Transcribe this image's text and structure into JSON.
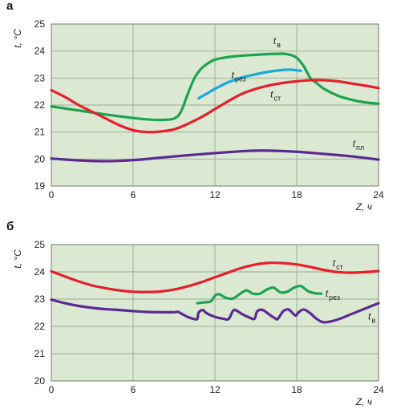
{
  "chart_data": [
    {
      "panel": "а",
      "type": "line",
      "xlabel": "Z, ч",
      "ylabel": "t, °C",
      "xlim": [
        0,
        24
      ],
      "ylim": [
        19,
        25
      ],
      "xticks": [
        "0",
        "6",
        "12",
        "18",
        "24"
      ],
      "yticks": [
        "19",
        "20",
        "21",
        "22",
        "23",
        "24",
        "25"
      ],
      "grid": true,
      "series": [
        {
          "label_main": "t",
          "label_sub": "в",
          "color": "#1ea250",
          "x": [
            0,
            2,
            4,
            6,
            7,
            8,
            9,
            9.5,
            10,
            10.5,
            11,
            11.5,
            12,
            13,
            14,
            15,
            16,
            17,
            17.5,
            18,
            18.5,
            19,
            19.5,
            20,
            21,
            22,
            23,
            24
          ],
          "y": [
            21.95,
            21.8,
            21.65,
            21.52,
            21.47,
            21.45,
            21.5,
            21.75,
            22.4,
            23.0,
            23.35,
            23.55,
            23.68,
            23.78,
            23.83,
            23.86,
            23.89,
            23.9,
            23.86,
            23.75,
            23.45,
            23.0,
            22.8,
            22.6,
            22.35,
            22.2,
            22.1,
            22.05
          ]
        },
        {
          "label_main": "t",
          "label_sub": "рез",
          "color": "#1aa8df",
          "x": [
            10.8,
            11.5,
            12,
            13,
            14,
            15,
            16,
            17,
            17.5,
            18,
            18.3
          ],
          "y": [
            22.25,
            22.45,
            22.6,
            22.85,
            23.02,
            23.14,
            23.24,
            23.3,
            23.31,
            23.29,
            23.27
          ]
        },
        {
          "label_main": "t",
          "label_sub": "ст",
          "color": "#e3202b",
          "x": [
            0,
            1,
            2,
            3,
            4,
            5,
            6,
            7,
            8,
            9,
            10,
            11,
            12,
            13,
            14,
            15,
            16,
            17,
            18,
            19,
            20,
            21,
            22,
            23,
            24
          ],
          "y": [
            22.55,
            22.3,
            22.0,
            21.75,
            21.5,
            21.25,
            21.07,
            21.0,
            21.02,
            21.1,
            21.3,
            21.55,
            21.85,
            22.15,
            22.42,
            22.6,
            22.73,
            22.82,
            22.88,
            22.92,
            22.92,
            22.88,
            22.8,
            22.72,
            22.63
          ]
        },
        {
          "label_main": "t",
          "label_sub": "пл",
          "color": "#5b2a91",
          "x": [
            0,
            2,
            4,
            6,
            8,
            10,
            12,
            14,
            15,
            16,
            18,
            20,
            22,
            24
          ],
          "y": [
            20.02,
            19.95,
            19.92,
            19.96,
            20.05,
            20.14,
            20.22,
            20.29,
            20.31,
            20.31,
            20.27,
            20.19,
            20.1,
            19.98
          ]
        }
      ]
    },
    {
      "panel": "б",
      "type": "line",
      "xlabel": "Z, ч",
      "ylabel": "t, °C",
      "xlim": [
        0,
        24
      ],
      "ylim": [
        20,
        25
      ],
      "xticks": [
        "0",
        "6",
        "12",
        "18",
        "24"
      ],
      "yticks": [
        "20",
        "21",
        "22",
        "23",
        "24",
        "25"
      ],
      "grid": true,
      "series": [
        {
          "label_main": "t",
          "label_sub": "ст",
          "color": "#e3202b",
          "x": [
            0,
            1,
            2,
            3,
            4,
            5,
            6,
            7,
            8,
            9,
            10,
            11,
            12,
            13,
            14,
            15,
            16,
            17,
            18,
            19,
            20,
            21,
            22,
            23,
            24
          ],
          "y": [
            24.02,
            23.83,
            23.65,
            23.5,
            23.4,
            23.32,
            23.27,
            23.26,
            23.28,
            23.35,
            23.47,
            23.62,
            23.8,
            23.98,
            24.15,
            24.27,
            24.33,
            24.32,
            24.27,
            24.18,
            24.07,
            23.99,
            23.97,
            23.99,
            24.03
          ]
        },
        {
          "label_main": "t",
          "label_sub": "рез",
          "color": "#1ea250",
          "x": [
            10.7,
            11.2,
            11.7,
            12.0,
            12.3,
            12.8,
            13.3,
            13.8,
            14.3,
            14.8,
            15.3,
            15.8,
            16.3,
            16.8,
            17.3,
            17.8,
            18.3,
            18.8,
            19.3,
            19.8
          ],
          "y": [
            22.85,
            22.88,
            22.92,
            23.12,
            23.18,
            23.05,
            23.02,
            23.18,
            23.32,
            23.2,
            23.2,
            23.35,
            23.42,
            23.25,
            23.27,
            23.42,
            23.48,
            23.3,
            23.22,
            23.2
          ]
        },
        {
          "label_main": "t",
          "label_sub": "в",
          "color": "#5b2a91",
          "x": [
            0,
            1,
            2,
            3,
            4,
            5,
            6,
            7,
            8,
            9,
            9.3,
            9.6,
            10,
            10.4,
            10.7,
            10.8,
            11.1,
            11.4,
            12,
            12.6,
            13,
            13.3,
            13.5,
            14,
            14.5,
            14.9,
            15.1,
            15.5,
            16,
            16.4,
            16.6,
            17,
            17.4,
            17.9,
            18.1,
            18.5,
            19,
            19.4,
            20,
            21,
            22,
            23,
            24
          ],
          "y": [
            22.98,
            22.85,
            22.75,
            22.68,
            22.63,
            22.6,
            22.56,
            22.53,
            22.52,
            22.52,
            22.53,
            22.45,
            22.35,
            22.28,
            22.27,
            22.5,
            22.6,
            22.48,
            22.35,
            22.28,
            22.27,
            22.55,
            22.6,
            22.45,
            22.33,
            22.28,
            22.55,
            22.6,
            22.43,
            22.3,
            22.27,
            22.55,
            22.62,
            22.4,
            22.5,
            22.62,
            22.48,
            22.3,
            22.15,
            22.25,
            22.45,
            22.65,
            22.85
          ]
        }
      ]
    }
  ]
}
